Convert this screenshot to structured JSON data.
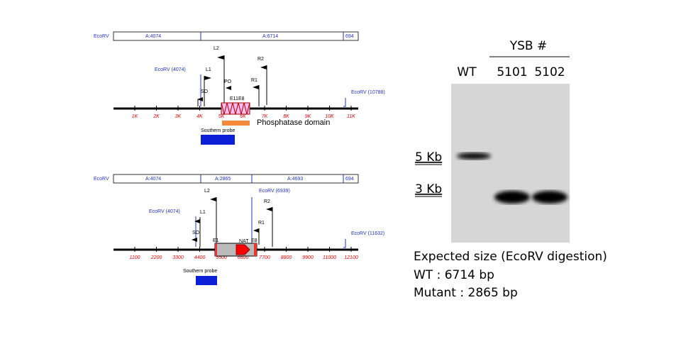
{
  "map_wt": {
    "left_label": "EcoRV",
    "segments": [
      "A:4074",
      "A:6714",
      "694"
    ],
    "site_left": "EcoRV (4074)",
    "site_right": "EcoRV (10788)",
    "primers": {
      "L1": "L1",
      "L2": "L2",
      "SO": "SO",
      "PO": "PO",
      "R1": "R1",
      "R2": "R2"
    },
    "exons": [
      "E11",
      "E8"
    ],
    "ticks": [
      "1K",
      "2K",
      "3K",
      "4K",
      "5K",
      "6K",
      "7K",
      "8K",
      "9K",
      "10K",
      "11K"
    ],
    "domain": "Phosphatase domain",
    "probe": "Southern probe"
  },
  "map_mutant": {
    "left_label": "EcoRV",
    "segments": [
      "A:4074",
      "A:2865",
      "A:4693",
      "694"
    ],
    "site_left": "EcoRV (4074)",
    "site_mid": "EcoRV (6939)",
    "site_right": "EcoRV (11632)",
    "primers": {
      "L1": "L1",
      "L2": "L2",
      "SO": "SO",
      "R1": "R1",
      "R2": "R2"
    },
    "exons": [
      "E1",
      "E8"
    ],
    "marker": "NAT",
    "ticks": [
      "1100",
      "2200",
      "3300",
      "4400",
      "5500",
      "6600",
      "7700",
      "8800",
      "9900",
      "11000",
      "12100"
    ],
    "probe": "Southern probe"
  },
  "gel": {
    "group": "YSB #",
    "lanes": [
      "WT",
      "5101",
      "5102"
    ],
    "sizes": [
      "5 Kb",
      "3 Kb"
    ]
  },
  "caption": {
    "title": "Expected size (EcoRV digestion)",
    "lines": [
      "WT : 6714 bp",
      "Mutant : 2865 bp"
    ]
  }
}
